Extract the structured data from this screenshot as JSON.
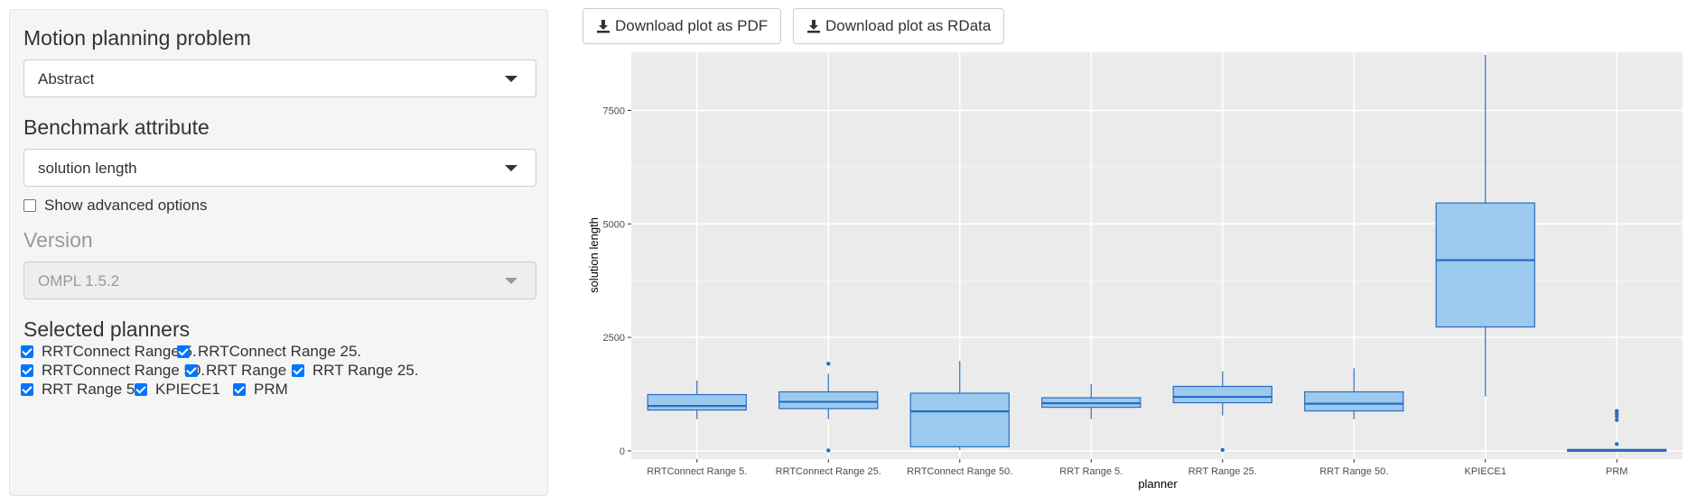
{
  "sidebar": {
    "problem_label": "Motion planning problem",
    "problem_value": "Abstract",
    "attribute_label": "Benchmark attribute",
    "attribute_value": "solution length",
    "advanced_label": "Show advanced options",
    "version_label": "Version",
    "version_value": "OMPL 1.5.2",
    "planners_label": "Selected planners",
    "planners": [
      "RRTConnect Range 5.",
      "RRTConnect Range 25.",
      "RRTConnect Range 50.",
      "RRT Range 5.",
      "RRT Range 25.",
      "RRT Range 50.",
      "KPIECE1",
      "PRM"
    ]
  },
  "toolbar": {
    "pdf_label": "Download plot as PDF",
    "rdata_label": "Download plot as RData"
  },
  "colors": {
    "box_fill": "#9ccaee",
    "box_stroke": "#2a6dc0",
    "panel_bg": "#ebebeb",
    "accent": "#0075ff"
  },
  "chart_data": {
    "type": "boxplot",
    "xlabel": "planner",
    "ylabel": "solution length",
    "ylim": [
      -180,
      8780
    ],
    "yticks": [
      0,
      2500,
      5000,
      7500
    ],
    "categories": [
      "RRTConnect Range 5.",
      "RRTConnect Range 25.",
      "RRTConnect Range 50.",
      "RRT Range 5.",
      "RRT Range 25.",
      "RRT Range 50.",
      "KPIECE1",
      "PRM"
    ],
    "boxes": [
      {
        "lower": 700,
        "q1": 900,
        "median": 990,
        "q3": 1240,
        "upper": 1550,
        "outliers": []
      },
      {
        "lower": 700,
        "q1": 930,
        "median": 1080,
        "q3": 1300,
        "upper": 1700,
        "outliers": [
          1920,
          10
        ]
      },
      {
        "lower": 20,
        "q1": 90,
        "median": 870,
        "q3": 1270,
        "upper": 1980,
        "outliers": []
      },
      {
        "lower": 700,
        "q1": 960,
        "median": 1050,
        "q3": 1170,
        "upper": 1470,
        "outliers": []
      },
      {
        "lower": 780,
        "q1": 1060,
        "median": 1190,
        "q3": 1420,
        "upper": 1750,
        "outliers": [
          20
        ]
      },
      {
        "lower": 700,
        "q1": 880,
        "median": 1040,
        "q3": 1300,
        "upper": 1820,
        "outliers": []
      },
      {
        "lower": 1200,
        "q1": 2730,
        "median": 4200,
        "q3": 5460,
        "upper": 8720,
        "outliers": []
      },
      {
        "lower": 0,
        "q1": 0,
        "median": 20,
        "q3": 30,
        "upper": 50,
        "outliers": [
          150,
          680,
          760,
          820,
          880
        ]
      }
    ]
  }
}
